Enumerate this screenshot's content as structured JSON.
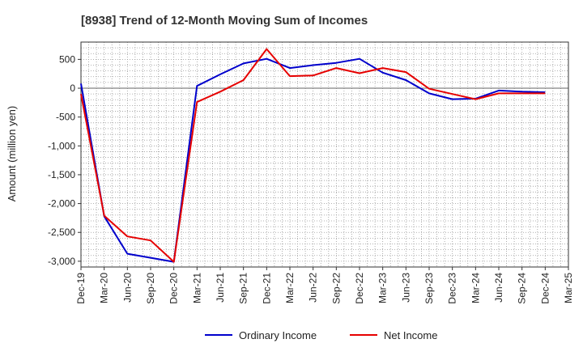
{
  "chart_data": {
    "type": "line",
    "title": "[8938]  Trend of 12-Month Moving Sum of Incomes",
    "xlabel": "",
    "ylabel": "Amount (million yen)",
    "ylim": [
      -3100,
      800
    ],
    "yticks": [
      500,
      0,
      -500,
      -1000,
      -1500,
      -2000,
      -2500,
      -3000
    ],
    "ytick_labels": [
      "500",
      "0",
      "-500",
      "-1,000",
      "-1,500",
      "-2,000",
      "-2,500",
      "-3,000"
    ],
    "grid": true,
    "legend_position": "bottom-center",
    "categories": [
      "Dec-19",
      "Mar-20",
      "Jun-20",
      "Sep-20",
      "Dec-20",
      "Mar-21",
      "Jun-21",
      "Sep-21",
      "Dec-21",
      "Mar-22",
      "Jun-22",
      "Sep-22",
      "Dec-22",
      "Mar-23",
      "Jun-23",
      "Sep-23",
      "Dec-23",
      "Mar-24",
      "Jun-24",
      "Sep-24",
      "Dec-24",
      "Mar-25"
    ],
    "series": [
      {
        "name": "Ordinary Income",
        "color": "#0000cc",
        "values": [
          80,
          -2220,
          -2870,
          -2940,
          -3010,
          40,
          240,
          430,
          510,
          350,
          400,
          440,
          510,
          270,
          140,
          -90,
          -190,
          -180,
          -40,
          -60,
          -70,
          null
        ]
      },
      {
        "name": "Net Income",
        "color": "#e60000",
        "values": [
          -100,
          -2210,
          -2570,
          -2640,
          -3010,
          -240,
          -60,
          140,
          680,
          210,
          220,
          350,
          260,
          350,
          280,
          -10,
          -100,
          -190,
          -90,
          -90,
          -90,
          null
        ]
      }
    ]
  }
}
